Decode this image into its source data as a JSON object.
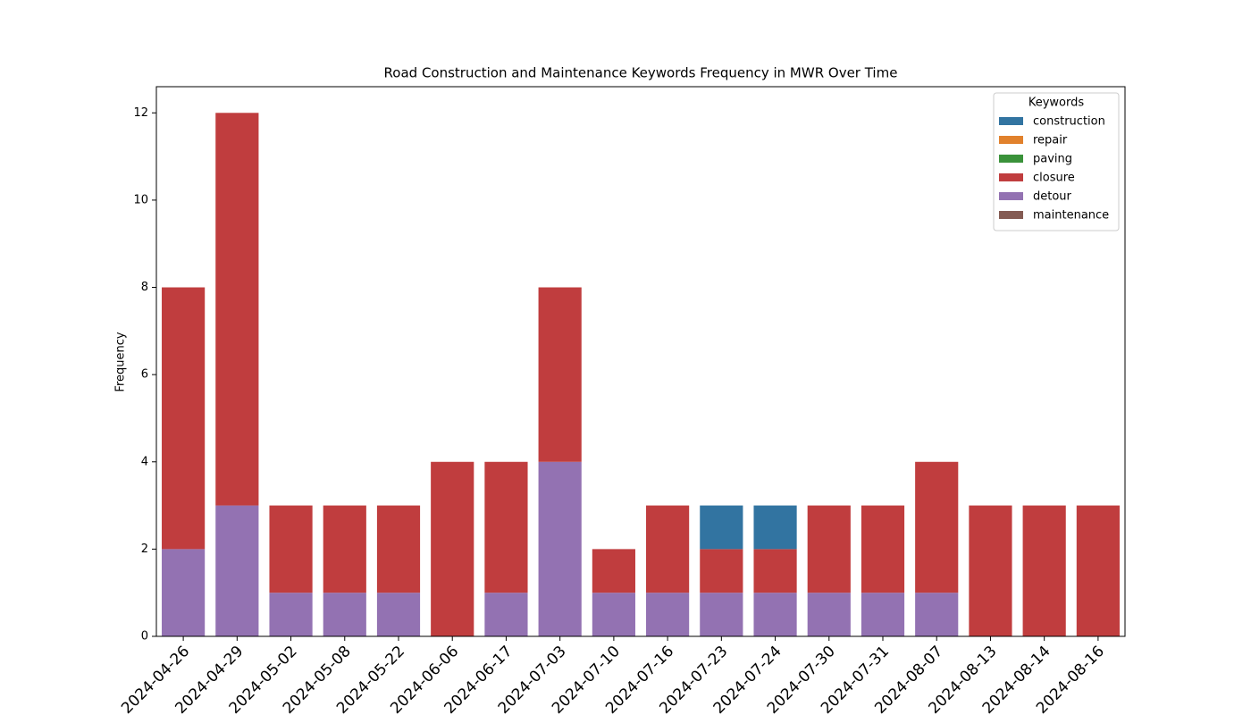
{
  "chart_data": {
    "type": "stacked_bar",
    "title": "Road Construction and Maintenance Keywords Frequency in MWR Over Time",
    "ylabel": "Frequency",
    "categories": [
      "2024-04-26",
      "2024-04-29",
      "2024-05-02",
      "2024-05-08",
      "2024-05-22",
      "2024-06-06",
      "2024-06-17",
      "2024-07-03",
      "2024-07-10",
      "2024-07-16",
      "2024-07-23",
      "2024-07-24",
      "2024-07-30",
      "2024-07-31",
      "2024-08-07",
      "2024-08-13",
      "2024-08-14",
      "2024-08-16"
    ],
    "series": [
      {
        "name": "construction",
        "color": "#3274a1",
        "values": [
          0,
          0,
          0,
          0,
          0,
          0,
          0,
          0,
          0,
          0,
          1,
          1,
          0,
          0,
          0,
          0,
          0,
          0
        ]
      },
      {
        "name": "repair",
        "color": "#e1812c",
        "values": [
          0,
          0,
          0,
          0,
          0,
          0,
          0,
          0,
          0,
          0,
          0,
          0,
          0,
          0,
          0,
          0,
          0,
          0
        ]
      },
      {
        "name": "paving",
        "color": "#3a923a",
        "values": [
          0,
          0,
          0,
          0,
          0,
          0,
          0,
          0,
          0,
          0,
          0,
          0,
          0,
          0,
          0,
          0,
          0,
          0
        ]
      },
      {
        "name": "closure",
        "color": "#c03d3e",
        "values": [
          6,
          9,
          2,
          2,
          2,
          4,
          3,
          4,
          1,
          2,
          1,
          1,
          2,
          2,
          3,
          3,
          3,
          3
        ]
      },
      {
        "name": "detour",
        "color": "#9372b2",
        "values": [
          2,
          3,
          1,
          1,
          1,
          0,
          1,
          4,
          1,
          1,
          1,
          1,
          1,
          1,
          1,
          0,
          0,
          0
        ]
      },
      {
        "name": "maintenance",
        "color": "#845b53",
        "values": [
          0,
          0,
          0,
          0,
          0,
          0,
          0,
          0,
          0,
          0,
          0,
          0,
          0,
          0,
          0,
          0,
          0,
          0
        ]
      }
    ],
    "legend_title": "Keywords",
    "legend": "upper right",
    "ylim": [
      0,
      12.6
    ],
    "yticks": [
      0,
      2,
      4,
      6,
      8,
      10,
      12
    ],
    "grid": false
  }
}
